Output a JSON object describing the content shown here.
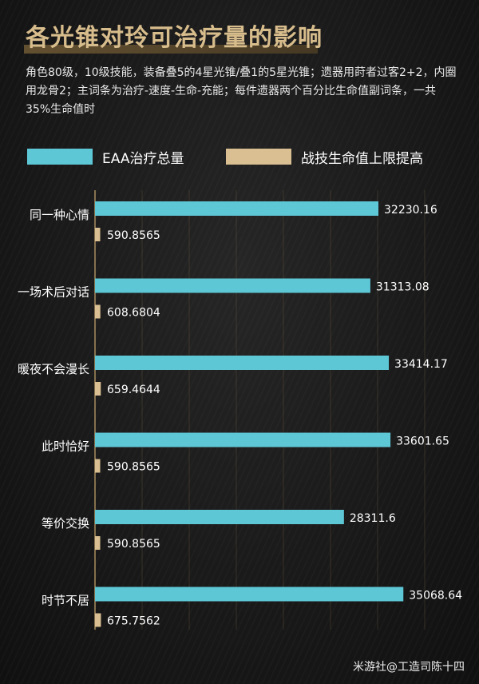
{
  "title": "各光锥对玲可治疗量的影响",
  "subtitle": "角色80级，10级技能，装备叠5的4星光锥/叠1的5星光锥；遗器用莳者过客2+2，内圈用龙骨2；主词条为治疗-速度-生命-充能；每件遗器两个百分比生命值副词条，一共35%生命值时",
  "watermark": "米游社@工造司陈十四",
  "colors": {
    "series_primary": "#5ec7d6",
    "series_secondary": "#d9bf91",
    "title": "#d8bd8c",
    "grid": "#8a7550"
  },
  "chart_data": {
    "type": "bar",
    "orientation": "horizontal",
    "categories": [
      "同一种心情",
      "一场术后对话",
      "暖夜不会漫长",
      "此时恰好",
      "等价交换",
      "时节不居"
    ],
    "series": [
      {
        "name": "EAA治疗总量",
        "values": [
          32230.16,
          31313.08,
          33414.17,
          33601.65,
          28311.6,
          35068.64
        ]
      },
      {
        "name": "战技生命值上限提高",
        "values": [
          590.8565,
          608.6804,
          659.4644,
          590.8565,
          590.8565,
          675.7562
        ]
      }
    ],
    "value_labels": [
      [
        "32230.16",
        "31313.08",
        "33414.17",
        "33601.65",
        "28311.6",
        "35068.64"
      ],
      [
        "590.8565",
        "608.6804",
        "659.4644",
        "590.8565",
        "590.8565",
        "675.7562"
      ]
    ],
    "xlim": [
      0,
      40000
    ],
    "legend_position": "top",
    "grid": true
  }
}
